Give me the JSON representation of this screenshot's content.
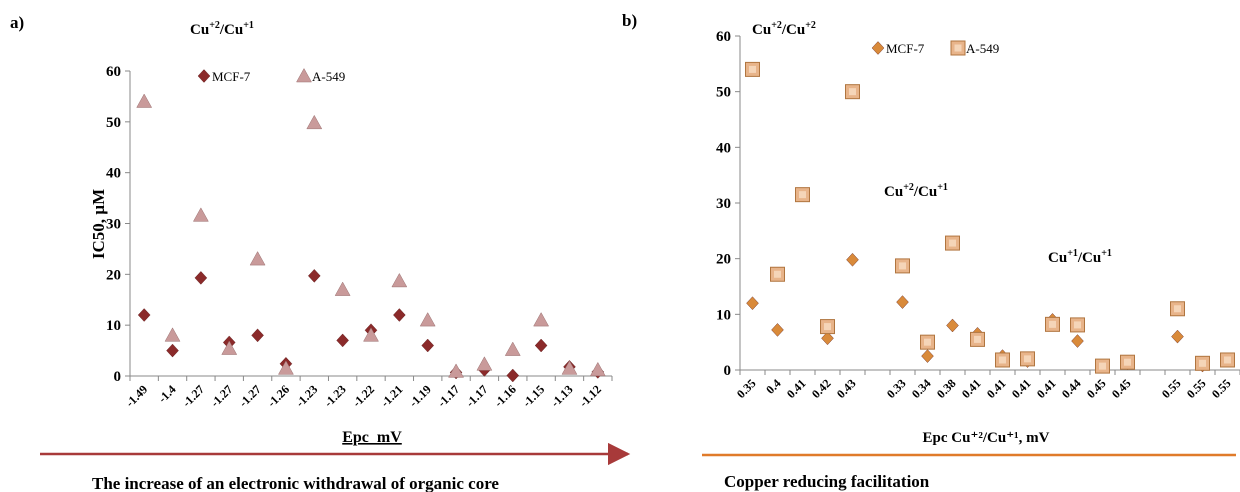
{
  "panels": {
    "a": {
      "label": "a)",
      "annotations": [
        {
          "base": "Cu",
          "sup1": "+2",
          "sep": "/Cu",
          "sup2": "+1"
        }
      ],
      "arrow_caption": "The increase of an electronic withdrawal of organic core",
      "arrow_color": "#a83a3a"
    },
    "b": {
      "label": "b)",
      "annotations": [
        {
          "base": "Cu",
          "sup1": "+2",
          "sep": "/Cu",
          "sup2": "+2"
        },
        {
          "base": "Cu",
          "sup1": "+2",
          "sep": "/Cu",
          "sup2": "+1"
        },
        {
          "base": "Cu",
          "sup1": "+1",
          "sep": "/Cu",
          "sup2": "+1"
        }
      ],
      "arrow_caption": "Copper reducing facilitation",
      "arrow_color": "#e07b2a"
    }
  },
  "chart_data": [
    {
      "type": "scatter",
      "title": "",
      "xlabel": "Epc  mV",
      "ylabel": "IC50, µM",
      "ylim": [
        0,
        60
      ],
      "yticks": [
        0,
        10,
        20,
        30,
        40,
        50,
        60
      ],
      "grid": false,
      "legend_position": "top-center",
      "categories": [
        "-1.49",
        "-1.4",
        "-1.27",
        "-1.27",
        "-1.27",
        "-1.26",
        "-1.23",
        "-1.23",
        "-1.22",
        "-1.21",
        "-1.19",
        "-1.17",
        "-1.17",
        "-1.16",
        "-1.15",
        "-1.13",
        "-1.12"
      ],
      "series": [
        {
          "name": "MCF-7",
          "marker": "diamond",
          "color": "#8b2a2a",
          "values": [
            12,
            5,
            19.3,
            6.6,
            8,
            2.4,
            19.7,
            7,
            9,
            12,
            6,
            0.7,
            1.2,
            0.1,
            6,
            1.8,
            0.8
          ]
        },
        {
          "name": "A-549",
          "marker": "triangle",
          "color": "#c99a9a",
          "values": [
            54,
            8,
            31.6,
            5.4,
            23,
            1.5,
            49.8,
            17,
            8,
            18.7,
            11,
            0.9,
            2.3,
            5.2,
            11,
            1.5,
            1.2
          ]
        }
      ]
    },
    {
      "type": "scatter",
      "title": "",
      "xlabel": "Epc Cu⁺²/Cu⁺¹, mV",
      "ylabel": "",
      "ylim": [
        0,
        60
      ],
      "yticks": [
        0,
        10,
        20,
        30,
        40,
        50,
        60
      ],
      "grid": false,
      "legend_position": "top-center",
      "categories": [
        "0.35",
        "0.4",
        "0.41",
        "0.42",
        "0.43",
        "0.33",
        "0.34",
        "0.38",
        "0.41",
        "0.41",
        "0.41",
        "0.41",
        "0.44",
        "0.45",
        "0.45",
        "0.55",
        "0.55",
        "0.55"
      ],
      "category_slots": [
        0,
        1,
        2,
        3,
        4,
        6,
        7,
        8,
        9,
        10,
        11,
        12,
        13,
        14,
        15,
        17,
        18,
        19
      ],
      "series": [
        {
          "name": "MCF-7",
          "marker": "diamond",
          "color": "#d98a3a",
          "values": [
            12,
            7.2,
            null,
            5.7,
            19.8,
            12.2,
            2.5,
            8,
            6.5,
            2.5,
            1.6,
            9,
            5.2,
            0.6,
            1.2,
            6,
            0.8,
            1.8
          ]
        },
        {
          "name": "A-549",
          "marker": "square",
          "color": "#e8b48a",
          "values": [
            54,
            17.2,
            31.5,
            7.8,
            50,
            18.7,
            5,
            22.8,
            5.5,
            1.8,
            2,
            8.2,
            8.1,
            0.7,
            1.4,
            11,
            1.2,
            1.8
          ]
        }
      ]
    }
  ]
}
